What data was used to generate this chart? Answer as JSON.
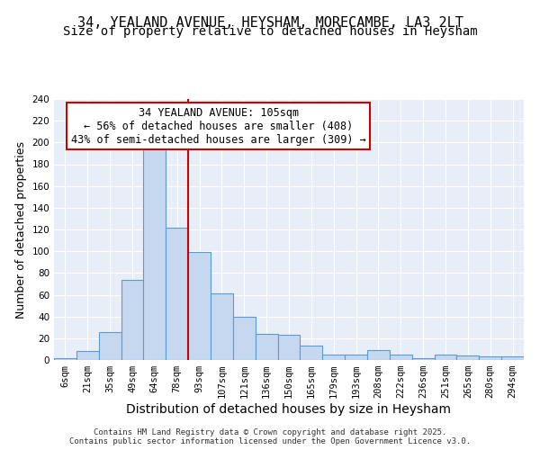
{
  "title": "34, YEALAND AVENUE, HEYSHAM, MORECAMBE, LA3 2LT",
  "subtitle": "Size of property relative to detached houses in Heysham",
  "xlabel": "Distribution of detached houses by size in Heysham",
  "ylabel": "Number of detached properties",
  "categories": [
    "6sqm",
    "21sqm",
    "35sqm",
    "49sqm",
    "64sqm",
    "78sqm",
    "93sqm",
    "107sqm",
    "121sqm",
    "136sqm",
    "150sqm",
    "165sqm",
    "179sqm",
    "193sqm",
    "208sqm",
    "222sqm",
    "236sqm",
    "251sqm",
    "265sqm",
    "280sqm",
    "294sqm"
  ],
  "values": [
    2,
    8,
    26,
    74,
    197,
    122,
    99,
    61,
    40,
    24,
    23,
    13,
    5,
    5,
    9,
    5,
    2,
    5,
    4,
    3,
    3
  ],
  "bar_color": "#c5d8f0",
  "bar_edge_color": "#5b9bd5",
  "vline_x_index": 6,
  "vline_color": "#cc0000",
  "annotation_text": "34 YEALAND AVENUE: 105sqm\n← 56% of detached houses are smaller (408)\n43% of semi-detached houses are larger (309) →",
  "annotation_box_color": "#ffffff",
  "annotation_box_edge": "#cc0000",
  "ylim": [
    0,
    240
  ],
  "yticks": [
    0,
    20,
    40,
    60,
    80,
    100,
    120,
    140,
    160,
    180,
    200,
    220,
    240
  ],
  "bg_color": "#e8eef7",
  "fig_bg": "#ffffff",
  "footer": "Contains HM Land Registry data © Crown copyright and database right 2025.\nContains public sector information licensed under the Open Government Licence v3.0.",
  "title_fontsize": 11,
  "subtitle_fontsize": 10,
  "xlabel_fontsize": 10,
  "ylabel_fontsize": 9,
  "tick_fontsize": 7.5,
  "annotation_fontsize": 8.5
}
